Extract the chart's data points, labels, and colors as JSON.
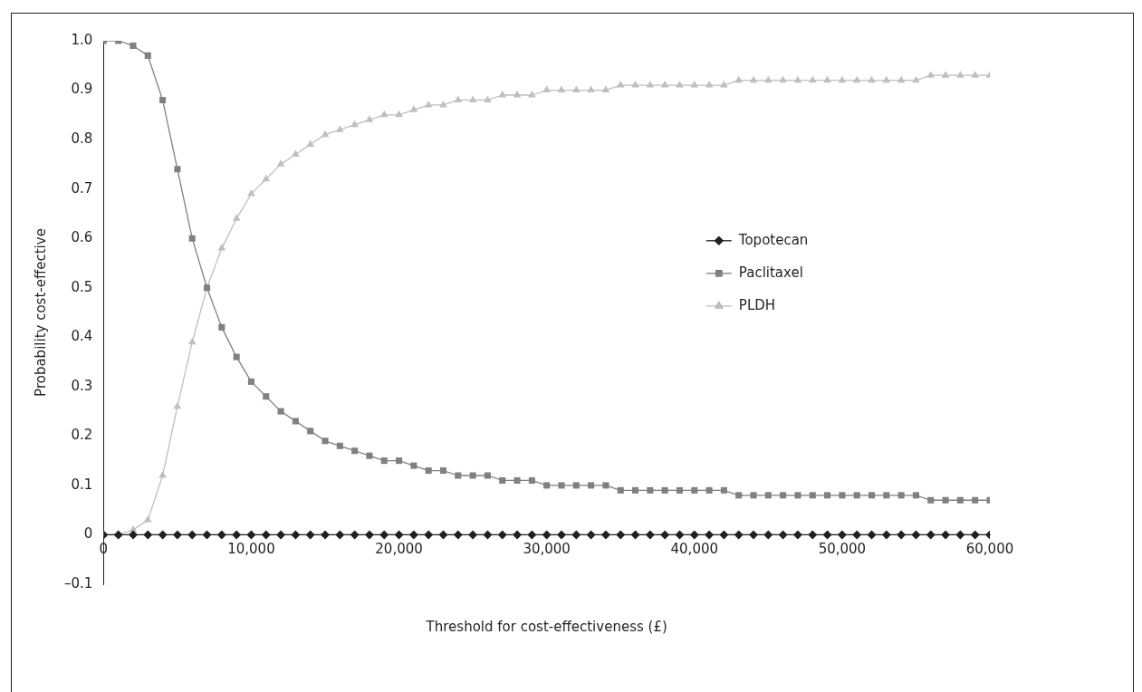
{
  "chart_data": {
    "type": "line",
    "xlabel": "Threshold for cost-effectiveness (£)",
    "ylabel": "Probability cost-effective",
    "x": [
      0,
      1000,
      2000,
      3000,
      4000,
      5000,
      6000,
      7000,
      8000,
      9000,
      10000,
      11000,
      12000,
      13000,
      14000,
      15000,
      16000,
      17000,
      18000,
      19000,
      20000,
      21000,
      22000,
      23000,
      24000,
      25000,
      26000,
      27000,
      28000,
      29000,
      30000,
      31000,
      32000,
      33000,
      34000,
      35000,
      36000,
      37000,
      38000,
      39000,
      40000,
      41000,
      42000,
      43000,
      44000,
      45000,
      46000,
      47000,
      48000,
      49000,
      50000,
      51000,
      52000,
      53000,
      54000,
      55000,
      56000,
      57000,
      58000,
      59000,
      60000
    ],
    "series": [
      {
        "name": "Topotecan",
        "color": "#231f20",
        "marker": "diamond",
        "values": [
          0,
          0,
          0,
          0,
          0,
          0,
          0,
          0,
          0,
          0,
          0,
          0,
          0,
          0,
          0,
          0,
          0,
          0,
          0,
          0,
          0,
          0,
          0,
          0,
          0,
          0,
          0,
          0,
          0,
          0,
          0,
          0,
          0,
          0,
          0,
          0,
          0,
          0,
          0,
          0,
          0,
          0,
          0,
          0,
          0,
          0,
          0,
          0,
          0,
          0,
          0,
          0,
          0,
          0,
          0,
          0,
          0,
          0,
          0,
          0,
          0
        ]
      },
      {
        "name": "Paclitaxel",
        "color": "#808080",
        "marker": "square",
        "values": [
          1,
          1,
          0.99,
          0.97,
          0.88,
          0.74,
          0.6,
          0.5,
          0.42,
          0.36,
          0.31,
          0.28,
          0.25,
          0.23,
          0.21,
          0.19,
          0.18,
          0.17,
          0.16,
          0.15,
          0.15,
          0.14,
          0.13,
          0.13,
          0.12,
          0.12,
          0.12,
          0.11,
          0.11,
          0.11,
          0.1,
          0.1,
          0.1,
          0.1,
          0.1,
          0.09,
          0.09,
          0.09,
          0.09,
          0.09,
          0.09,
          0.09,
          0.09,
          0.08,
          0.08,
          0.08,
          0.08,
          0.08,
          0.08,
          0.08,
          0.08,
          0.08,
          0.08,
          0.08,
          0.08,
          0.08,
          0.07,
          0.07,
          0.07,
          0.07,
          0.07
        ]
      },
      {
        "name": "PLDH",
        "color": "#bfbfbf",
        "marker": "triangle",
        "values": [
          0,
          0,
          0.01,
          0.03,
          0.12,
          0.26,
          0.39,
          0.5,
          0.58,
          0.64,
          0.69,
          0.72,
          0.75,
          0.77,
          0.79,
          0.81,
          0.82,
          0.83,
          0.84,
          0.85,
          0.85,
          0.86,
          0.87,
          0.87,
          0.88,
          0.88,
          0.88,
          0.89,
          0.89,
          0.89,
          0.9,
          0.9,
          0.9,
          0.9,
          0.9,
          0.91,
          0.91,
          0.91,
          0.91,
          0.91,
          0.91,
          0.91,
          0.91,
          0.92,
          0.92,
          0.92,
          0.92,
          0.92,
          0.92,
          0.92,
          0.92,
          0.92,
          0.92,
          0.92,
          0.92,
          0.92,
          0.93,
          0.93,
          0.93,
          0.93,
          0.93
        ]
      }
    ],
    "xlim": [
      0,
      60000
    ],
    "xticks": [
      0,
      {
        "value": 10000,
        "label": "10,000"
      },
      {
        "value": 20000,
        "label": "20,000"
      },
      {
        "value": 30000,
        "label": "30,000"
      },
      {
        "value": 40000,
        "label": "40,000"
      },
      {
        "value": 50000,
        "label": "50,000"
      },
      {
        "value": 60000,
        "label": "60,000"
      }
    ],
    "ylim": [
      -0.1,
      1
    ],
    "yticks": [
      {
        "value": -0.1,
        "label": "–0.1"
      },
      0,
      0.1,
      0.2,
      0.3,
      0.4,
      0.5,
      0.6,
      0.7,
      0.8,
      0.9,
      {
        "value": 1,
        "label": "1.0"
      }
    ],
    "grid": false,
    "legend": "right",
    "line_style": "solid"
  }
}
